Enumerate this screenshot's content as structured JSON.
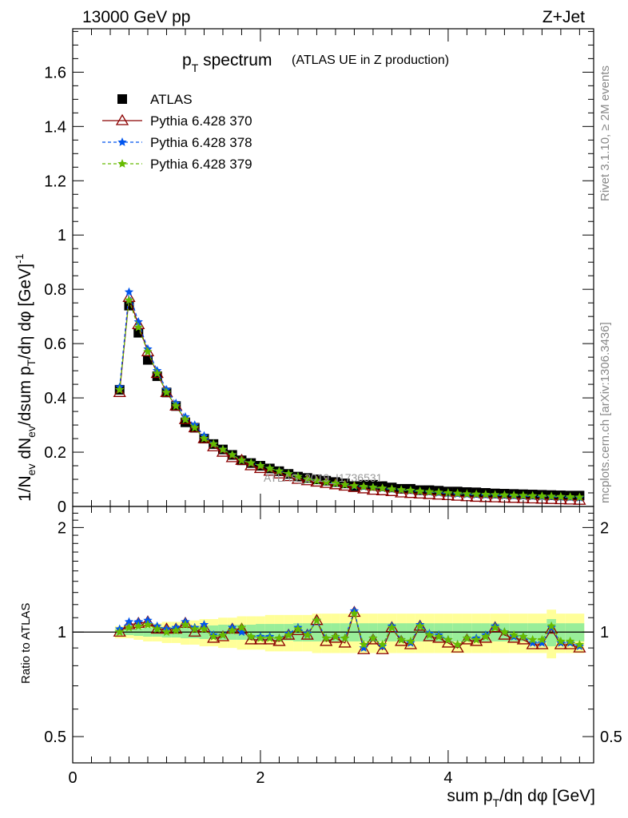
{
  "header": {
    "left": "13000 GeV pp",
    "right": "Z+Jet"
  },
  "side_text": {
    "rivet": "Rivet 3.1.10, ≥ 2M events",
    "mcplots": "mcplots.cern.ch [arXiv:1306.3436]"
  },
  "watermark": "ATLAS_2019_I1736531",
  "chart_data": [
    {
      "type": "line",
      "title": "p_T spectrum",
      "title_main": "p",
      "title_sub": "T",
      "title_rest": " spectrum",
      "subtitle": "(ATLAS UE in Z production)",
      "ylabel": "1/N_ev dN_ev/dsum p_T/dη dφ [GeV]^-1",
      "xlim": [
        0,
        5.55
      ],
      "ylim": [
        0,
        1.76
      ],
      "yticks": [
        0,
        0.2,
        0.4,
        0.6,
        0.8,
        1,
        1.2,
        1.4,
        1.6
      ],
      "ytick_labels": [
        "0",
        "0.2",
        "0.4",
        "0.6",
        "0.8",
        "1",
        "1.2",
        "1.4",
        "1.6"
      ],
      "legend_placement": "top-left",
      "x": [
        0.5,
        0.6,
        0.7,
        0.8,
        0.9,
        1.0,
        1.1,
        1.2,
        1.3,
        1.4,
        1.5,
        1.6,
        1.7,
        1.8,
        1.9,
        2.0,
        2.1,
        2.2,
        2.3,
        2.4,
        2.5,
        2.6,
        2.7,
        2.8,
        2.9,
        3.0,
        3.1,
        3.2,
        3.3,
        3.4,
        3.5,
        3.6,
        3.7,
        3.8,
        3.9,
        4.0,
        4.1,
        4.2,
        4.3,
        4.4,
        4.5,
        4.6,
        4.7,
        4.8,
        4.9,
        5.0,
        5.1,
        5.2,
        5.3,
        5.4
      ],
      "series": [
        {
          "name": "ATLAS",
          "color": "#000000",
          "marker": "square",
          "values": [
            0.43,
            0.74,
            0.64,
            0.54,
            0.48,
            0.42,
            0.37,
            0.31,
            0.29,
            0.25,
            0.23,
            0.21,
            0.19,
            0.17,
            0.16,
            0.15,
            0.14,
            0.13,
            0.12,
            0.11,
            0.105,
            0.1,
            0.095,
            0.09,
            0.085,
            0.075,
            0.08,
            0.08,
            0.075,
            0.07,
            0.065,
            0.065,
            0.06,
            0.06,
            0.058,
            0.055,
            0.055,
            0.053,
            0.052,
            0.05,
            0.048,
            0.047,
            0.046,
            0.045,
            0.044,
            0.043,
            0.042,
            0.041,
            0.04,
            0.04
          ]
        },
        {
          "name": "Pythia 6.428 370",
          "color": "#8b0000",
          "marker": "open-triangle",
          "values": [
            0.42,
            0.77,
            0.67,
            0.57,
            0.49,
            0.42,
            0.37,
            0.32,
            0.29,
            0.25,
            0.22,
            0.2,
            0.18,
            0.17,
            0.15,
            0.14,
            0.13,
            0.12,
            0.11,
            0.1,
            0.095,
            0.09,
            0.085,
            0.08,
            0.075,
            0.07,
            0.065,
            0.06,
            0.058,
            0.055,
            0.05,
            0.048,
            0.046,
            0.044,
            0.042,
            0.04,
            0.038,
            0.036,
            0.034,
            0.033,
            0.032,
            0.031,
            0.03,
            0.029,
            0.028,
            0.027,
            0.026,
            0.025,
            0.024,
            0.023
          ]
        },
        {
          "name": "Pythia 6.428 378",
          "color": "#0055ee",
          "marker": "star",
          "values": [
            0.44,
            0.79,
            0.68,
            0.58,
            0.5,
            0.43,
            0.38,
            0.33,
            0.3,
            0.26,
            0.23,
            0.21,
            0.19,
            0.17,
            0.16,
            0.15,
            0.14,
            0.13,
            0.12,
            0.11,
            0.1,
            0.095,
            0.09,
            0.085,
            0.08,
            0.075,
            0.072,
            0.07,
            0.066,
            0.063,
            0.06,
            0.058,
            0.055,
            0.053,
            0.05,
            0.048,
            0.046,
            0.044,
            0.043,
            0.042,
            0.041,
            0.04,
            0.039,
            0.038,
            0.037,
            0.036,
            0.035,
            0.034,
            0.033,
            0.032
          ]
        },
        {
          "name": "Pythia 6.428 379",
          "color": "#66bb00",
          "marker": "star",
          "values": [
            0.43,
            0.76,
            0.66,
            0.57,
            0.49,
            0.42,
            0.37,
            0.32,
            0.29,
            0.25,
            0.23,
            0.21,
            0.19,
            0.17,
            0.16,
            0.15,
            0.14,
            0.13,
            0.12,
            0.11,
            0.1,
            0.095,
            0.09,
            0.085,
            0.08,
            0.076,
            0.073,
            0.07,
            0.067,
            0.064,
            0.061,
            0.059,
            0.056,
            0.054,
            0.052,
            0.05,
            0.048,
            0.046,
            0.045,
            0.044,
            0.043,
            0.042,
            0.041,
            0.04,
            0.039,
            0.038,
            0.037,
            0.036,
            0.035,
            0.034
          ]
        }
      ]
    },
    {
      "type": "line",
      "ylabel": "Ratio to ATLAS",
      "xlabel": "sum p_T/dη dφ [GeV]",
      "xlim": [
        0,
        5.55
      ],
      "ylim": [
        0.42,
        2.3
      ],
      "log_y": true,
      "xticks": [
        0,
        2,
        4
      ],
      "xtick_labels": [
        "0",
        "2",
        "4"
      ],
      "yticks": [
        0.5,
        1,
        2
      ],
      "ytick_labels": [
        "0.5",
        "1",
        "2"
      ],
      "reference_line": 1,
      "band_inner_halfwidth": [
        0.02,
        0.02,
        0.025,
        0.03,
        0.03,
        0.035,
        0.035,
        0.04,
        0.04,
        0.045,
        0.045,
        0.05,
        0.05,
        0.05,
        0.05,
        0.055,
        0.055,
        0.055,
        0.055,
        0.06,
        0.06,
        0.06,
        0.06,
        0.06,
        0.06,
        0.06,
        0.06,
        0.06,
        0.06,
        0.06,
        0.06,
        0.06,
        0.06,
        0.06,
        0.06,
        0.06,
        0.06,
        0.06,
        0.06,
        0.06,
        0.06,
        0.06,
        0.06,
        0.06,
        0.06,
        0.06,
        0.09,
        0.06,
        0.06,
        0.06
      ],
      "band_outer_halfwidth": [
        0.04,
        0.04,
        0.05,
        0.06,
        0.06,
        0.07,
        0.07,
        0.08,
        0.08,
        0.09,
        0.09,
        0.1,
        0.1,
        0.11,
        0.11,
        0.11,
        0.12,
        0.12,
        0.12,
        0.12,
        0.12,
        0.13,
        0.13,
        0.13,
        0.13,
        0.13,
        0.13,
        0.13,
        0.13,
        0.13,
        0.13,
        0.13,
        0.13,
        0.13,
        0.13,
        0.13,
        0.13,
        0.13,
        0.13,
        0.13,
        0.13,
        0.13,
        0.13,
        0.13,
        0.13,
        0.13,
        0.16,
        0.13,
        0.13,
        0.13
      ],
      "series": [
        {
          "name": "Pythia 6.428 370",
          "color": "#8b0000",
          "marker": "open-triangle",
          "values": [
            1.0,
            1.05,
            1.06,
            1.07,
            1.02,
            1.02,
            1.02,
            1.06,
            1.0,
            1.03,
            0.96,
            0.97,
            1.02,
            1.02,
            0.95,
            0.95,
            0.95,
            0.94,
            0.98,
            1.01,
            0.98,
            1.08,
            0.94,
            0.96,
            0.93,
            1.14,
            0.89,
            0.95,
            0.89,
            1.03,
            0.94,
            0.92,
            1.04,
            0.97,
            0.96,
            0.93,
            0.9,
            0.95,
            0.94,
            0.96,
            1.03,
            0.98,
            0.96,
            0.95,
            0.92,
            0.92,
            1.02,
            0.92,
            0.92,
            0.9
          ]
        },
        {
          "name": "Pythia 6.428 378",
          "color": "#0055ee",
          "marker": "star",
          "values": [
            1.02,
            1.07,
            1.07,
            1.08,
            1.04,
            1.02,
            1.03,
            1.07,
            1.03,
            1.05,
            0.98,
            0.98,
            1.03,
            1.0,
            0.97,
            0.97,
            0.97,
            0.96,
            0.99,
            1.03,
            0.99,
            1.08,
            0.96,
            0.97,
            0.96,
            1.15,
            0.9,
            0.96,
            0.91,
            1.04,
            0.95,
            0.93,
            1.05,
            0.99,
            0.98,
            0.95,
            0.92,
            0.96,
            0.96,
            0.98,
            1.04,
            1.0,
            0.97,
            0.97,
            0.93,
            0.93,
            1.03,
            0.93,
            0.93,
            0.91
          ]
        },
        {
          "name": "Pythia 6.428 379",
          "color": "#66bb00",
          "marker": "star",
          "values": [
            1.0,
            1.03,
            1.04,
            1.05,
            1.02,
            1.0,
            1.01,
            1.05,
            1.02,
            1.02,
            0.97,
            0.98,
            1.01,
            1.03,
            0.97,
            0.96,
            0.96,
            0.96,
            0.98,
            1.02,
            0.98,
            1.08,
            0.96,
            0.97,
            0.96,
            1.13,
            0.92,
            0.96,
            0.92,
            1.03,
            0.95,
            0.94,
            1.04,
            0.98,
            0.97,
            0.95,
            0.92,
            0.96,
            0.95,
            0.97,
            1.03,
            1.0,
            0.98,
            0.97,
            0.95,
            0.95,
            1.04,
            0.94,
            0.94,
            0.92
          ]
        }
      ]
    }
  ]
}
